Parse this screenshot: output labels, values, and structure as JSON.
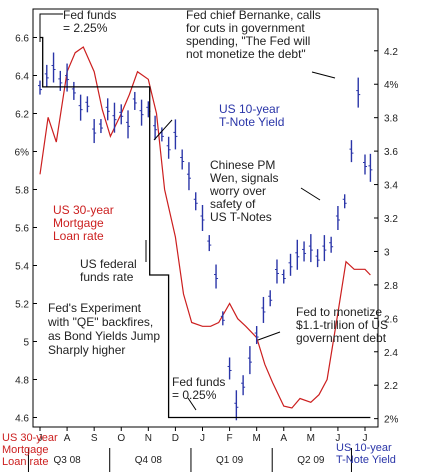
{
  "chart_data": {
    "type": "line",
    "title": "",
    "left_axis": {
      "title": "US 30-year Mortgage Loan rate",
      "ticks": [
        "6.6",
        "6.4",
        "6.2",
        "6%",
        "5.8",
        "5.6",
        "5.4",
        "5.2",
        "5",
        "4.8",
        "4.6"
      ],
      "ylim": [
        4.55,
        6.75
      ]
    },
    "right_axis": {
      "title": "US 10-year T-Note Yield",
      "ticks": [
        "4.2",
        "4%",
        "3.8",
        "3.6",
        "3.4",
        "3.2",
        "3",
        "2.8",
        "2.6",
        "2.4",
        "2.2",
        "2%"
      ],
      "ylim": [
        1.95,
        4.45
      ]
    },
    "x_axis": {
      "months": [
        "J",
        "A",
        "S",
        "O",
        "N",
        "D",
        "J",
        "F",
        "M",
        "A",
        "M",
        "J",
        "J"
      ],
      "quarters": [
        "Q3 08",
        "Q4 08",
        "Q1 09",
        "Q2 09"
      ]
    },
    "series": [
      {
        "name": "US 30-year Mortgage Loan rate",
        "axis": "left",
        "color": "#cc1f1f",
        "x": [
          0.0,
          0.3,
          0.6,
          1.0,
          1.3,
          1.6,
          2.0,
          2.3,
          2.6,
          3.0,
          3.3,
          3.6,
          4.0,
          4.3,
          4.6,
          5.0,
          5.3,
          5.6,
          6.0,
          6.3,
          6.6,
          7.0,
          7.3,
          7.6,
          8.0,
          8.3,
          8.6,
          9.0,
          9.3,
          9.6,
          10.0,
          10.3,
          10.6,
          11.0,
          11.3,
          11.6,
          12.0,
          12.2
        ],
        "y": [
          5.88,
          6.18,
          6.05,
          6.42,
          6.52,
          6.55,
          6.42,
          6.22,
          6.08,
          6.2,
          6.3,
          6.42,
          6.38,
          6.2,
          5.8,
          5.55,
          5.25,
          5.1,
          5.08,
          5.08,
          5.1,
          5.2,
          5.12,
          5.08,
          5.02,
          4.88,
          4.78,
          4.66,
          4.65,
          4.7,
          4.68,
          4.72,
          4.8,
          5.15,
          5.42,
          5.38,
          5.38,
          5.35
        ]
      },
      {
        "name": "US 10-year T-Note Yield",
        "axis": "right",
        "color": "#2a35a8",
        "x": [
          0.0,
          0.25,
          0.5,
          0.75,
          1.0,
          1.25,
          1.5,
          1.75,
          2.0,
          2.25,
          2.5,
          2.75,
          3.0,
          3.25,
          3.5,
          3.75,
          4.0,
          4.25,
          4.5,
          4.75,
          5.0,
          5.25,
          5.5,
          5.75,
          6.0,
          6.25,
          6.5,
          6.75,
          7.0,
          7.25,
          7.5,
          7.75,
          8.0,
          8.25,
          8.5,
          8.75,
          9.0,
          9.25,
          9.5,
          9.75,
          10.0,
          10.25,
          10.5,
          10.75,
          11.0,
          11.25,
          11.5,
          11.75,
          12.0,
          12.2
        ],
        "y": [
          3.98,
          4.05,
          4.1,
          4.02,
          4.04,
          3.96,
          3.86,
          3.88,
          3.72,
          3.75,
          3.85,
          3.8,
          3.82,
          3.76,
          3.9,
          3.83,
          3.85,
          3.74,
          3.7,
          3.62,
          3.7,
          3.55,
          3.45,
          3.3,
          3.2,
          3.05,
          2.85,
          2.6,
          2.3,
          2.08,
          2.2,
          2.35,
          2.5,
          2.65,
          2.72,
          2.88,
          2.85,
          2.92,
          2.98,
          3.0,
          3.02,
          2.96,
          3.02,
          3.04,
          3.2,
          3.3,
          3.6,
          3.95,
          3.52,
          3.5
        ]
      },
      {
        "name": "US federal funds rate",
        "axis": "left",
        "color": "#000000",
        "x": [
          0.0,
          0.1,
          0.1,
          2.95,
          2.95,
          4.05,
          4.05,
          4.75,
          4.75,
          6.2,
          6.2,
          12.2
        ],
        "y": [
          6.6,
          6.6,
          6.34,
          6.34,
          6.34,
          6.34,
          5.35,
          5.35,
          4.6,
          4.6,
          4.6,
          4.6
        ]
      }
    ],
    "annotations": {
      "fed_funds_top": [
        "Fed funds",
        "= 2.25%"
      ],
      "bernanke": [
        "Fed chief Bernanke, calls",
        "for cuts in government",
        "spending, \"The Fed will",
        "not monetize the debt\""
      ],
      "tnote": [
        "US 10-year",
        "T-Note Yield"
      ],
      "chinese_pm": [
        "Chinese PM",
        "Wen, signals",
        "worry over",
        "safety of",
        "US T-Notes"
      ],
      "mortgage": [
        "US 30-year",
        "Mortgage",
        "Loan rate"
      ],
      "fedfunds_mid": [
        "US federal",
        "funds rate"
      ],
      "experiment": [
        "Fed's Experiment",
        "with \"QE\" backfires,",
        "as Bond Yields Jump",
        "Sharply higher"
      ],
      "monetize": [
        "Fed to monetize",
        "$1.1-trillion of US",
        "government debt"
      ],
      "fed_funds_bottom": [
        "Fed funds",
        "= 0.25%"
      ]
    },
    "corner_labels": {
      "left": [
        "US 30-year",
        "Mortgage",
        "Loan rate"
      ],
      "right": [
        "US 10-year",
        "T-Note Yield"
      ]
    }
  }
}
